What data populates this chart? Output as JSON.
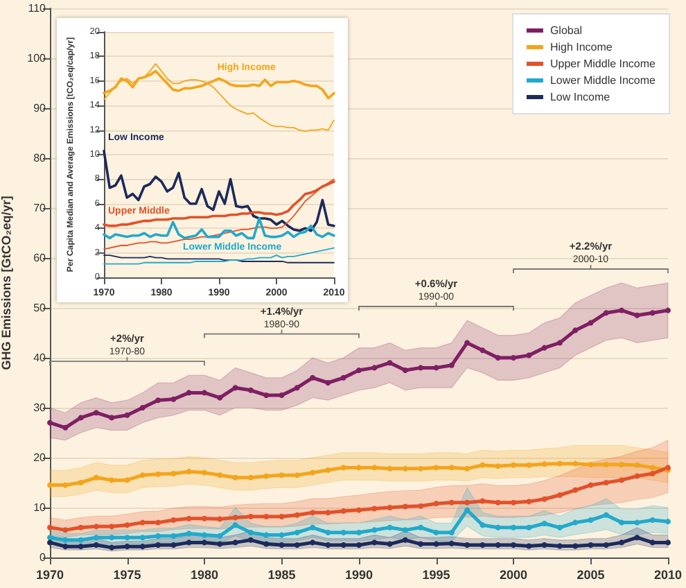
{
  "chart_data": [
    {
      "type": "line",
      "ylabel": "GHG Emissions [GtCO₂eq/yr]",
      "x": [
        1970,
        1971,
        1972,
        1973,
        1974,
        1975,
        1976,
        1977,
        1978,
        1979,
        1980,
        1981,
        1982,
        1983,
        1984,
        1985,
        1986,
        1987,
        1988,
        1989,
        1990,
        1991,
        1992,
        1993,
        1994,
        1995,
        1996,
        1997,
        1998,
        1999,
        2000,
        2001,
        2002,
        2003,
        2004,
        2005,
        2006,
        2007,
        2008,
        2009,
        2010
      ],
      "xlim": [
        1970,
        2010
      ],
      "xticks": [
        1970,
        1975,
        1980,
        1985,
        1990,
        1995,
        2000,
        2005,
        2010
      ],
      "ylim": [
        0,
        110
      ],
      "yticks": [
        0,
        10,
        20,
        30,
        40,
        50,
        60,
        70,
        80,
        90,
        100,
        110
      ],
      "grid": "y",
      "legend": "top right",
      "marker": "circle",
      "series": [
        {
          "name": "Global",
          "color": "#7e1f63",
          "values": [
            27,
            26,
            28,
            29,
            28,
            28.5,
            30,
            31.5,
            31.7,
            33,
            33,
            32,
            34,
            33.5,
            32.5,
            32.5,
            34,
            36,
            35,
            36,
            37.5,
            38,
            39,
            37.5,
            38,
            38,
            38.5,
            43,
            41.5,
            40,
            40,
            40.5,
            42,
            43,
            45.5,
            47,
            49,
            49.5,
            48.5,
            49,
            49.5
          ],
          "lower": [
            24,
            23.5,
            25,
            26,
            25.5,
            25.5,
            27,
            28,
            28.5,
            29.5,
            29.5,
            28.5,
            30,
            30,
            29.5,
            29.5,
            30.5,
            32,
            31.5,
            32.5,
            33.5,
            34,
            35,
            33.5,
            34,
            34,
            34,
            38,
            37,
            35.5,
            35.5,
            36,
            37,
            38,
            40.5,
            42,
            43.5,
            44,
            43,
            43.5,
            44
          ],
          "upper": [
            30,
            29,
            31,
            32,
            31,
            31.5,
            33,
            35,
            35,
            36.5,
            36.5,
            35.5,
            38,
            37,
            36,
            36,
            37.5,
            40,
            39,
            40,
            42,
            42,
            43,
            41.5,
            42,
            42,
            43,
            47.5,
            46,
            44.5,
            44.5,
            45,
            47,
            48,
            51,
            52.5,
            54,
            55,
            54,
            54.5,
            55
          ]
        },
        {
          "name": "High Income",
          "color": "#f2a51c",
          "values": [
            14.5,
            14.5,
            15,
            16,
            15.5,
            15.5,
            16.5,
            16.7,
            16.8,
            17.2,
            17,
            16.5,
            16,
            16,
            16.3,
            16.5,
            16.5,
            17,
            17.5,
            18,
            18,
            18,
            17.8,
            17.8,
            17.8,
            18,
            18,
            17.8,
            18.5,
            18.3,
            18.5,
            18.5,
            18.7,
            18.8,
            18.8,
            18.6,
            18.6,
            18.6,
            18.5,
            18,
            17.5
          ],
          "lower": [
            12.2,
            12.2,
            12.7,
            13.5,
            13,
            13,
            14,
            14.2,
            14.3,
            14.7,
            14.5,
            14,
            13.5,
            13.5,
            13.8,
            14,
            14,
            14.5,
            15,
            15.5,
            15.5,
            15.5,
            15.3,
            15.3,
            15.3,
            15.5,
            15.5,
            15.3,
            16,
            15.8,
            16,
            16,
            16.2,
            16.2,
            16.2,
            16,
            16,
            16,
            16,
            15.5,
            15
          ],
          "upper": [
            17.5,
            17.5,
            18,
            19,
            18.5,
            18.5,
            19.5,
            19.7,
            19.8,
            20.2,
            20,
            19.5,
            19,
            19,
            19.3,
            19.5,
            19.5,
            20,
            20.5,
            21,
            21,
            21,
            20.8,
            20.8,
            20.8,
            21,
            21,
            20.8,
            21.5,
            21.3,
            21.5,
            21.5,
            21.8,
            22,
            22.5,
            22.5,
            22.5,
            22.5,
            22,
            21.5,
            21
          ]
        },
        {
          "name": "Upper Middle Income",
          "color": "#e2512a",
          "values": [
            6,
            5.5,
            6,
            6.2,
            6.2,
            6.5,
            7,
            7,
            7.5,
            7.8,
            7.8,
            7.7,
            8,
            8.2,
            8.2,
            8.2,
            8.5,
            9,
            9,
            9.3,
            9.5,
            9.8,
            10,
            10.2,
            10.3,
            10.8,
            11,
            11,
            11.3,
            11,
            11,
            11.2,
            11.7,
            12.5,
            13.5,
            14.5,
            15,
            15.5,
            16.3,
            16.8,
            18
          ],
          "lower": [
            4.5,
            4,
            4.5,
            4.6,
            4.6,
            4.8,
            5.2,
            5.2,
            5.6,
            5.8,
            5.8,
            5.7,
            6,
            6.1,
            6.1,
            6.1,
            6.3,
            6.7,
            6.7,
            6.9,
            7,
            7.2,
            7.4,
            7.5,
            7.6,
            8,
            8.1,
            8.1,
            8.3,
            8,
            8,
            8.2,
            8.5,
            9,
            9.7,
            10.4,
            10.7,
            11,
            11.6,
            12,
            13
          ],
          "upper": [
            8,
            7.5,
            8,
            8.3,
            8.3,
            8.7,
            9.2,
            9.3,
            9.9,
            10.2,
            10.2,
            10.1,
            10.5,
            10.7,
            10.8,
            10.8,
            11.2,
            11.8,
            11.8,
            12.2,
            12.5,
            12.9,
            13.2,
            13.4,
            13.5,
            14.1,
            14.4,
            14.4,
            14.8,
            14.4,
            14.4,
            14.7,
            15.4,
            16.4,
            17.7,
            19,
            19.7,
            20.3,
            21.3,
            22,
            23.5
          ]
        },
        {
          "name": "Lower Middle Income",
          "color": "#22a9cb",
          "values": [
            4,
            3.5,
            3.5,
            4,
            4,
            4,
            4,
            4.3,
            4.3,
            4.8,
            4.5,
            4.3,
            6.5,
            5,
            4.5,
            4.5,
            5,
            6,
            5,
            5,
            5,
            5.5,
            6,
            5.5,
            6,
            5,
            5,
            9.5,
            6.5,
            6,
            6,
            6,
            6.8,
            6,
            7,
            7.5,
            8.5,
            7,
            7,
            7.5,
            7.2
          ],
          "lower": [
            2.7,
            2.4,
            2.4,
            2.7,
            2.7,
            2.7,
            2.7,
            2.9,
            2.9,
            3.2,
            3,
            2.9,
            4.3,
            3.3,
            3,
            3,
            3.3,
            4,
            3.3,
            3.3,
            3.3,
            3.6,
            4,
            3.6,
            4,
            3.3,
            3.3,
            6.3,
            4.3,
            4,
            4,
            4,
            4.5,
            4,
            4.6,
            5,
            5.6,
            4.6,
            4.6,
            5,
            4.8
          ],
          "upper": [
            5.5,
            4.8,
            4.8,
            5.5,
            5.5,
            5.5,
            5.5,
            5.9,
            5.9,
            6.6,
            6.2,
            5.9,
            10,
            6.9,
            6.2,
            6.2,
            6.9,
            8.3,
            6.9,
            6.9,
            6.9,
            7.6,
            8.3,
            7.6,
            8.3,
            6.9,
            6.9,
            14,
            9,
            8.3,
            8.3,
            8.3,
            9.4,
            8.3,
            9.7,
            10.4,
            11.8,
            9.7,
            9.7,
            10.4,
            10
          ]
        },
        {
          "name": "Low Income",
          "color": "#1c2a5c",
          "values": [
            3,
            2.2,
            2.2,
            2.5,
            2,
            2.2,
            2.2,
            2.5,
            2.5,
            3,
            3,
            2.7,
            3,
            3.5,
            2.7,
            2.5,
            2.5,
            3,
            2.5,
            2.5,
            2.5,
            3,
            2.7,
            3.5,
            2.7,
            2.7,
            2.8,
            2.5,
            2.5,
            2.5,
            2.5,
            2.3,
            2.5,
            2.3,
            2.3,
            2.5,
            2.5,
            3,
            4,
            3,
            3
          ],
          "lower": [
            2,
            1.5,
            1.5,
            1.7,
            1.3,
            1.5,
            1.5,
            1.7,
            1.7,
            2,
            2,
            1.8,
            2,
            2.3,
            1.8,
            1.7,
            1.7,
            2,
            1.7,
            1.7,
            1.7,
            2,
            1.8,
            2.3,
            1.8,
            1.8,
            1.9,
            1.7,
            1.7,
            1.7,
            1.7,
            1.5,
            1.7,
            1.5,
            1.5,
            1.7,
            1.7,
            2,
            2.7,
            2,
            2
          ],
          "upper": [
            4.5,
            3.3,
            3.3,
            3.8,
            3,
            3.3,
            3.3,
            3.8,
            3.8,
            4.5,
            4.5,
            4,
            4.5,
            5.3,
            4,
            3.8,
            3.8,
            4.5,
            3.8,
            3.8,
            3.8,
            4.5,
            4,
            5.3,
            4,
            4,
            4.2,
            3.8,
            3.8,
            3.8,
            3.8,
            3.5,
            3.8,
            3.5,
            3.5,
            3.8,
            3.8,
            4.5,
            6,
            4.5,
            4.5
          ]
        }
      ],
      "annotations": [
        "+2%/yr\n1970-80",
        "+1.4%/yr\n1980-90",
        "+0.6%/yr\n1990-00",
        "+2.2%/yr\n2000-10"
      ]
    },
    {
      "type": "line",
      "ylabel": "Per Capita Median and Average Emissions [tCO₂eq/cap/yr]",
      "x": [
        1970,
        1971,
        1972,
        1973,
        1974,
        1975,
        1976,
        1977,
        1978,
        1979,
        1980,
        1981,
        1982,
        1983,
        1984,
        1985,
        1986,
        1987,
        1988,
        1989,
        1990,
        1991,
        1992,
        1993,
        1994,
        1995,
        1996,
        1997,
        1998,
        1999,
        2000,
        2001,
        2002,
        2003,
        2004,
        2005,
        2006,
        2007,
        2008,
        2009,
        2010
      ],
      "xlim": [
        1970,
        2010
      ],
      "xticks": [
        1970,
        1980,
        1990,
        2000,
        2010
      ],
      "ylim": [
        0,
        20
      ],
      "yticks": [
        0,
        2,
        4,
        6,
        8,
        10,
        12,
        14,
        16,
        18,
        20
      ],
      "grid": "y",
      "marker": "none",
      "series": [
        {
          "name": "High Income",
          "color": "#f2a51c",
          "values": [
            15,
            15.2,
            15.5,
            16.2,
            16,
            15.5,
            16.2,
            16.3,
            16.5,
            16.8,
            16.3,
            15.8,
            15.3,
            15.2,
            15.4,
            15.4,
            15.5,
            15.6,
            15.8,
            16,
            16.2,
            16,
            15.7,
            15.6,
            15.6,
            15.6,
            15.7,
            15.6,
            16.1,
            15.6,
            15.9,
            15.9,
            15.9,
            16,
            15.9,
            15.7,
            15.6,
            15.6,
            15.3,
            14.6,
            15
          ]
        },
        {
          "color": "#f2a51c",
          "values": [
            14.5,
            15,
            15.6,
            16,
            16.2,
            15.8,
            16.2,
            16.3,
            16.8,
            17.4,
            16.8,
            16.2,
            15.8,
            15.8,
            16,
            16.1,
            16.1,
            16,
            15.8,
            15.5,
            15,
            14.5,
            14,
            13.7,
            13.5,
            13.3,
            13.4,
            13,
            12.7,
            12.4,
            12.3,
            12.3,
            12.2,
            12.2,
            12,
            11.9,
            12,
            12,
            12.1,
            12,
            12.8
          ]
        },
        {
          "name": "Low Income",
          "color": "#1c2a5c",
          "values": [
            10.3,
            7.3,
            7.5,
            8.3,
            6.5,
            6.8,
            6.3,
            7.4,
            7.6,
            8.2,
            7.8,
            7,
            7.3,
            8.5,
            6.5,
            6,
            6,
            7.2,
            5.8,
            5.5,
            7,
            6,
            8,
            5.8,
            5.7,
            5.8,
            5,
            4.8,
            4.8,
            4.7,
            4.3,
            4.6,
            4.2,
            3.9,
            3.8,
            4,
            3.8,
            4.5,
            6.3,
            4.3,
            4.2
          ]
        },
        {
          "color": "#1c2a5c",
          "values": [
            1.8,
            1.8,
            1.7,
            1.6,
            1.6,
            1.6,
            1.6,
            1.6,
            1.7,
            1.6,
            1.6,
            1.5,
            1.5,
            1.5,
            1.5,
            1.5,
            1.5,
            1.5,
            1.5,
            1.5,
            1.5,
            1.4,
            1.4,
            1.4,
            1.3,
            1.3,
            1.3,
            1.3,
            1.3,
            1.3,
            1.3,
            1.3,
            1.2,
            1.2,
            1.2,
            1.2,
            1.2,
            1.2,
            1.2,
            1.2,
            1.2
          ]
        },
        {
          "name": "Upper Middle",
          "color": "#e2512a",
          "values": [
            4.3,
            4.2,
            4.2,
            4.3,
            4.3,
            4.4,
            4.5,
            4.6,
            4.6,
            4.7,
            4.7,
            4.7,
            4.8,
            4.8,
            4.8,
            4.9,
            4.9,
            4.9,
            4.9,
            5,
            5,
            5,
            5.1,
            5.1,
            5.2,
            5.2,
            5.3,
            5.3,
            5.2,
            5.2,
            5.1,
            5.2,
            5.4,
            5.9,
            6.3,
            6.8,
            6.9,
            7.1,
            7.4,
            7.6,
            7.8
          ]
        },
        {
          "color": "#e2512a",
          "values": [
            2.3,
            2.4,
            2.5,
            2.6,
            2.6,
            2.7,
            2.8,
            2.8,
            2.9,
            2.9,
            2.8,
            2.8,
            2.9,
            3,
            3.1,
            3.1,
            3.2,
            3.3,
            3.3,
            3.4,
            3.5,
            3.6,
            3.7,
            3.8,
            3.9,
            3.9,
            4,
            4.1,
            4.1,
            4,
            4,
            4.1,
            4.5,
            5,
            5.6,
            6.2,
            6.6,
            7,
            7.4,
            7.7,
            8
          ]
        },
        {
          "name": "Lower Middle Income",
          "color": "#22a9cb",
          "values": [
            3.5,
            3.2,
            3.5,
            3.4,
            3.3,
            3.4,
            3.4,
            3.6,
            3.3,
            3.5,
            3.4,
            3.4,
            4.5,
            3.5,
            3.2,
            3.3,
            3.4,
            3.9,
            3.3,
            3.3,
            3.3,
            3.8,
            3.8,
            3.4,
            3.6,
            3.2,
            3.2,
            4.8,
            3.4,
            3.3,
            3.3,
            3.4,
            3.7,
            3.3,
            3.6,
            3.7,
            4.2,
            3.5,
            3.3,
            3.6,
            3.4
          ]
        },
        {
          "color": "#22a9cb",
          "values": [
            1.1,
            1.1,
            1.1,
            1.1,
            1.1,
            1.1,
            1.1,
            1.2,
            1.2,
            1.2,
            1.2,
            1.2,
            1.2,
            1.2,
            1.2,
            1.2,
            1.3,
            1.3,
            1.3,
            1.3,
            1.3,
            1.3,
            1.4,
            1.4,
            1.4,
            1.5,
            1.5,
            1.6,
            1.6,
            1.6,
            1.8,
            1.6,
            1.7,
            1.7,
            1.8,
            1.9,
            2,
            2.1,
            2.2,
            2.3,
            2.4
          ]
        }
      ]
    }
  ]
}
